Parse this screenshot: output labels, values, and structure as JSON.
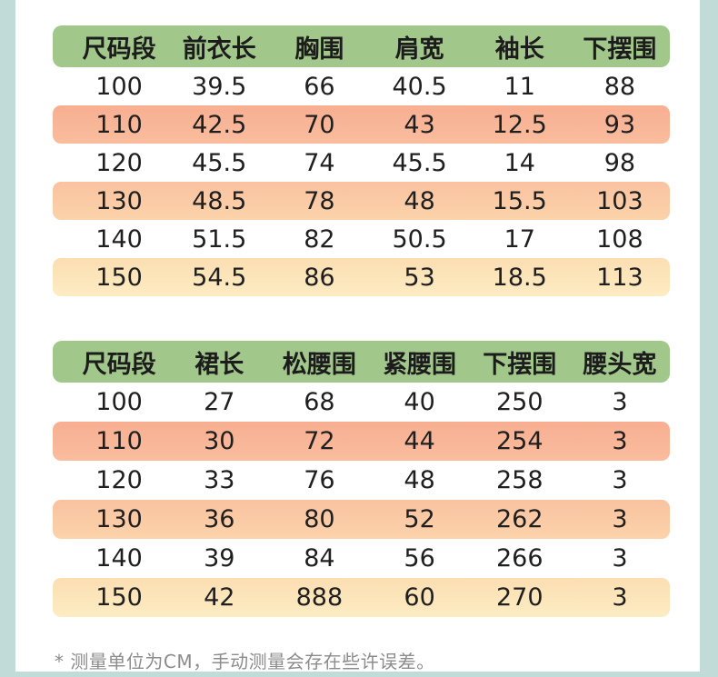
{
  "page": {
    "background_color": "#c1dbd8",
    "card_color": "#ffffff"
  },
  "colors": {
    "header_green": "#a1c78b",
    "row_salmon": "#f8b295",
    "row_peach": "#fbc9a4",
    "row_cream": "#fce4b8",
    "cell_text": "#1f1f1f",
    "footnote_gray": "#8c8c8c"
  },
  "tables": [
    {
      "title": "top-garment-size-chart",
      "headers": [
        "尺码段",
        "前衣长",
        "胸围",
        "肩宽",
        "袖长",
        "下摆围"
      ],
      "rows": [
        [
          "100",
          "39.5",
          "66",
          "40.5",
          "11",
          "88"
        ],
        [
          "110",
          "42.5",
          "70",
          "43",
          "12.5",
          "93"
        ],
        [
          "120",
          "45.5",
          "74",
          "45.5",
          "14",
          "98"
        ],
        [
          "130",
          "48.5",
          "78",
          "48",
          "15.5",
          "103"
        ],
        [
          "140",
          "51.5",
          "82",
          "50.5",
          "17",
          "108"
        ],
        [
          "150",
          "54.5",
          "86",
          "53",
          "18.5",
          "113"
        ]
      ]
    },
    {
      "title": "skirt-size-chart",
      "headers": [
        "尺码段",
        "裙长",
        "松腰围",
        "紧腰围",
        "下摆围",
        "腰头宽"
      ],
      "rows": [
        [
          "100",
          "27",
          "68",
          "40",
          "250",
          "3"
        ],
        [
          "110",
          "30",
          "72",
          "44",
          "254",
          "3"
        ],
        [
          "120",
          "33",
          "76",
          "48",
          "258",
          "3"
        ],
        [
          "130",
          "36",
          "80",
          "52",
          "262",
          "3"
        ],
        [
          "140",
          "39",
          "84",
          "56",
          "266",
          "3"
        ],
        [
          "150",
          "42",
          "888",
          "60",
          "270",
          "3"
        ]
      ]
    }
  ],
  "footnote": "* 测量单位为CM，手动测量会存在些许误差。"
}
